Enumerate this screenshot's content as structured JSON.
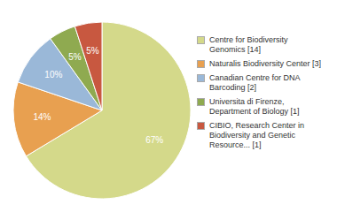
{
  "chart_data": {
    "type": "pie",
    "categories": [
      "Centre for Biodiversity\nGenomics [14]",
      "Naturalis Biodiversity Center [3]",
      "Canadian Centre for DNA\nBarcoding [2]",
      "Universita di Firenze,\nDepartment of Biology [1]",
      "CIBIO, Research Center in\nBiodiversity and Genetic\nResource... [1]"
    ],
    "values": [
      67,
      14,
      10,
      5,
      5
    ],
    "value_labels": [
      "67%",
      "14%",
      "10%",
      "5%",
      "5%"
    ],
    "colors": [
      "#d4d98a",
      "#e8a050",
      "#9ab8d8",
      "#8faa50",
      "#c85840"
    ],
    "data_labels": true,
    "legend": "right"
  }
}
